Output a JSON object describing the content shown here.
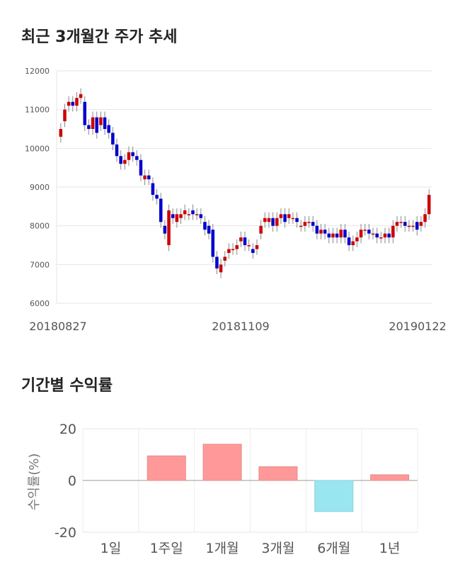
{
  "sections": {
    "price_title": "최근 3개월간 주가 추세",
    "returns_title": "기간별 수익률"
  },
  "chart_data": [
    {
      "type": "candlestick",
      "y_ticks": [
        "12000",
        "11000",
        "10000",
        "9000",
        "8000",
        "7000",
        "6000"
      ],
      "x_ticks": [
        "20180827",
        "20181109",
        "20190122"
      ],
      "ylim": [
        6000,
        12000
      ],
      "up_color": "#cc0000",
      "down_color": "#0000cc",
      "grid": true,
      "close": [
        10500,
        11000,
        11200,
        11100,
        11300,
        11400,
        10600,
        10500,
        10800,
        10400,
        10800,
        10500,
        10400,
        10100,
        9800,
        9600,
        9700,
        9900,
        9800,
        9700,
        9300,
        9300,
        9200,
        8800,
        8700,
        8100,
        7800,
        8400,
        8200,
        8300,
        8300,
        8400,
        8300,
        8300,
        8300,
        8200,
        7900,
        7800,
        7200,
        6900,
        7000,
        7200,
        7400,
        7400,
        7500,
        7700,
        7500,
        7500,
        7300,
        7500,
        8000,
        8200,
        8200,
        8000,
        8200,
        8300,
        8100,
        8300,
        8200,
        8100,
        8000,
        8100,
        8100,
        8000,
        7800,
        7900,
        7800,
        7700,
        7800,
        7700,
        7900,
        7700,
        7500,
        7600,
        7700,
        7900,
        7900,
        7800,
        7800,
        7700,
        7700,
        7800,
        7700,
        8000,
        8100,
        8100,
        8000,
        8000,
        8000,
        7900,
        8100,
        8300,
        8800
      ],
      "open": [
        10300,
        10700,
        11100,
        11200,
        11100,
        11300,
        11200,
        10600,
        10500,
        10800,
        10600,
        10800,
        10600,
        10400,
        10100,
        9800,
        9600,
        9700,
        9900,
        9800,
        9700,
        9200,
        9300,
        9100,
        8800,
        8700,
        8000,
        7500,
        8300,
        8100,
        8200,
        8300,
        8300,
        8400,
        8300,
        8300,
        8100,
        8000,
        7900,
        7200,
        6800,
        7100,
        7300,
        7400,
        7400,
        7600,
        7700,
        7500,
        7400,
        7400,
        7800,
        8100,
        8100,
        8200,
        8000,
        8200,
        8300,
        8200,
        8200,
        8200,
        8000,
        8000,
        8100,
        8100,
        8000,
        7800,
        7900,
        7800,
        7700,
        7800,
        7700,
        7900,
        7700,
        7500,
        7600,
        7700,
        7900,
        7900,
        7800,
        7800,
        7700,
        7700,
        7800,
        7700,
        8000,
        8100,
        8100,
        8000,
        8000,
        8100,
        8000,
        8100,
        8300
      ]
    },
    {
      "type": "bar",
      "ylabel": "수익률(%)",
      "ylim": [
        -20,
        20
      ],
      "y_ticks": [
        "20",
        "0",
        "-20"
      ],
      "categories": [
        "1일",
        "1주일",
        "1개월",
        "3개월",
        "6개월",
        "1년"
      ],
      "values": [
        0,
        9.5,
        14.0,
        5.3,
        -12.0,
        2.2
      ],
      "pos_color": "#ff9999",
      "neg_color": "#99e5f0"
    }
  ]
}
